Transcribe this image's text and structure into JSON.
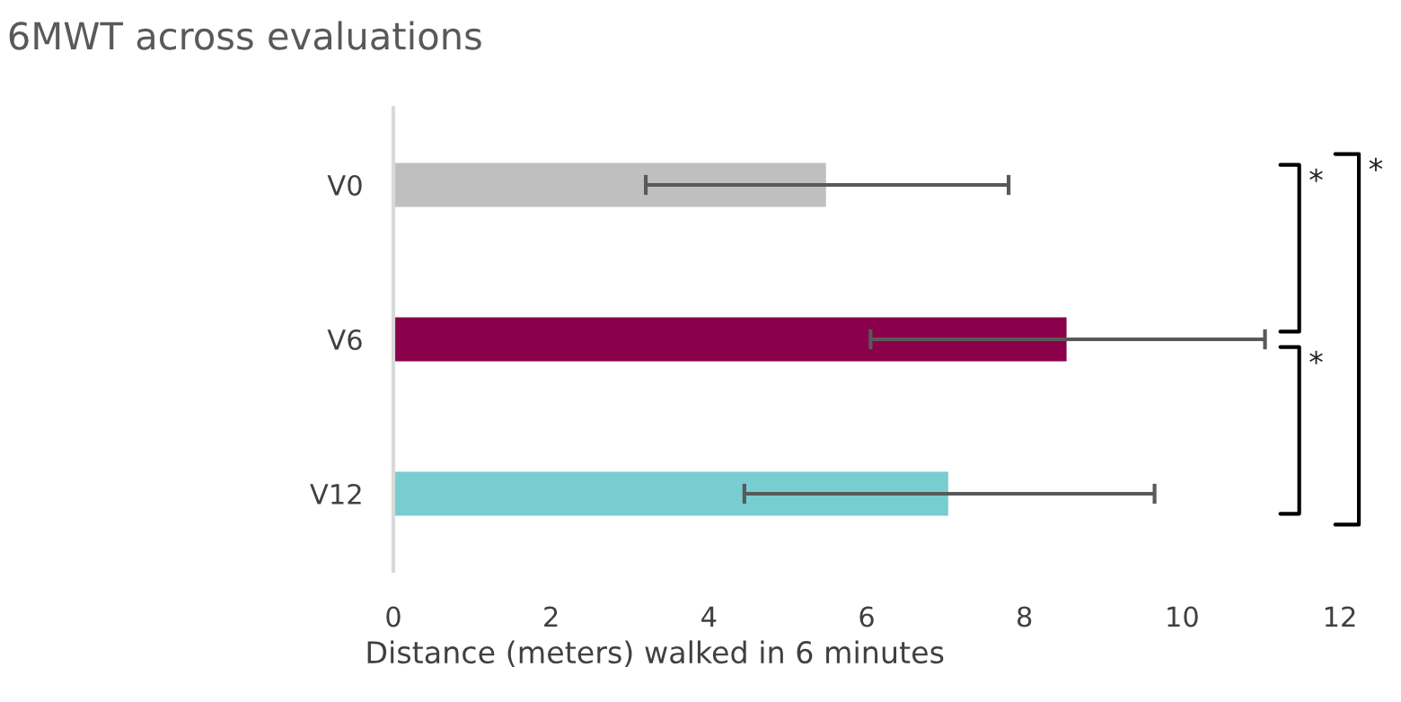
{
  "chart_data": {
    "type": "bar",
    "orientation": "horizontal",
    "title": "6MWT across evaluations",
    "xlabel": "Distance (meters) walked in 6 minutes",
    "categories": [
      "V0",
      "V6",
      "V12"
    ],
    "values": [
      5.5,
      8.55,
      7.05
    ],
    "colors": [
      "#bfbfbf",
      "#8b004b",
      "#78cdd1"
    ],
    "errors": [
      [
        3.2,
        7.8
      ],
      [
        6.05,
        11.05
      ],
      [
        4.45,
        9.65
      ]
    ],
    "xlim": [
      0,
      12
    ],
    "xticks": [
      0,
      2,
      4,
      6,
      8,
      10,
      12
    ],
    "grid": false,
    "legend": false,
    "annotations": [
      "*",
      "*",
      "*"
    ]
  }
}
